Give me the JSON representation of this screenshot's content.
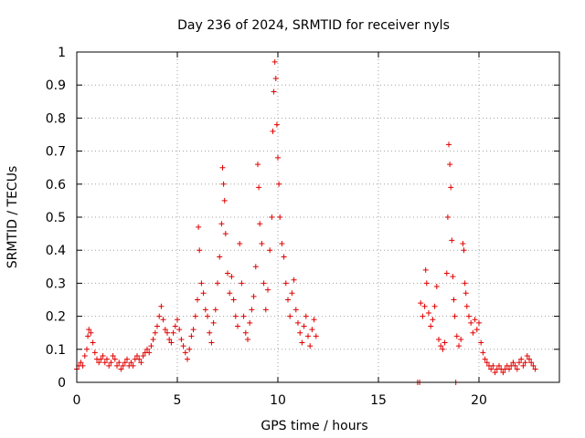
{
  "chart_data": {
    "type": "scatter",
    "title": "Day 236 of 2024, SRMTID for receiver nyls",
    "xlabel": "GPS time / hours",
    "ylabel": "SRMTID / TECUs",
    "xlim": [
      0,
      24
    ],
    "ylim": [
      0,
      1
    ],
    "grid": true,
    "marker": "+",
    "marker_color": "#e00000",
    "xticks": [
      0,
      5,
      10,
      15,
      20
    ],
    "xtick_labels": [
      "0",
      "5",
      "10",
      "15",
      "20"
    ],
    "yticks": [
      0,
      0.1,
      0.2,
      0.3,
      0.4,
      0.5,
      0.6,
      0.7,
      0.8,
      0.9,
      1
    ],
    "ytick_labels": [
      "0",
      "0.1",
      "0.2",
      "0.3",
      "0.4",
      "0.5",
      "0.6",
      "0.7",
      "0.8",
      "0.9",
      "1"
    ],
    "series": [
      {
        "name": "SRMTID",
        "points": [
          [
            0.0,
            0.04
          ],
          [
            0.1,
            0.05
          ],
          [
            0.2,
            0.06
          ],
          [
            0.3,
            0.05
          ],
          [
            0.4,
            0.08
          ],
          [
            0.5,
            0.1
          ],
          [
            0.55,
            0.14
          ],
          [
            0.6,
            0.16
          ],
          [
            0.7,
            0.15
          ],
          [
            0.8,
            0.12
          ],
          [
            0.9,
            0.09
          ],
          [
            1.0,
            0.07
          ],
          [
            1.1,
            0.06
          ],
          [
            1.2,
            0.07
          ],
          [
            1.3,
            0.08
          ],
          [
            1.4,
            0.06
          ],
          [
            1.5,
            0.07
          ],
          [
            1.6,
            0.05
          ],
          [
            1.7,
            0.06
          ],
          [
            1.8,
            0.08
          ],
          [
            1.9,
            0.07
          ],
          [
            2.0,
            0.05
          ],
          [
            2.1,
            0.06
          ],
          [
            2.2,
            0.04
          ],
          [
            2.3,
            0.05
          ],
          [
            2.4,
            0.06
          ],
          [
            2.5,
            0.07
          ],
          [
            2.6,
            0.05
          ],
          [
            2.7,
            0.06
          ],
          [
            2.8,
            0.05
          ],
          [
            2.9,
            0.07
          ],
          [
            3.0,
            0.08
          ],
          [
            3.1,
            0.07
          ],
          [
            3.2,
            0.06
          ],
          [
            3.3,
            0.08
          ],
          [
            3.4,
            0.09
          ],
          [
            3.5,
            0.1
          ],
          [
            3.6,
            0.09
          ],
          [
            3.7,
            0.11
          ],
          [
            3.8,
            0.13
          ],
          [
            3.9,
            0.15
          ],
          [
            4.0,
            0.17
          ],
          [
            4.1,
            0.2
          ],
          [
            4.2,
            0.23
          ],
          [
            4.3,
            0.19
          ],
          [
            4.4,
            0.16
          ],
          [
            4.5,
            0.15
          ],
          [
            4.6,
            0.13
          ],
          [
            4.7,
            0.12
          ],
          [
            4.8,
            0.15
          ],
          [
            4.9,
            0.17
          ],
          [
            5.0,
            0.19
          ],
          [
            5.1,
            0.16
          ],
          [
            5.2,
            0.13
          ],
          [
            5.3,
            0.11
          ],
          [
            5.4,
            0.09
          ],
          [
            5.5,
            0.07
          ],
          [
            5.6,
            0.1
          ],
          [
            5.7,
            0.14
          ],
          [
            5.8,
            0.16
          ],
          [
            5.9,
            0.2
          ],
          [
            6.0,
            0.25
          ],
          [
            6.05,
            0.47
          ],
          [
            6.1,
            0.4
          ],
          [
            6.2,
            0.3
          ],
          [
            6.3,
            0.27
          ],
          [
            6.4,
            0.22
          ],
          [
            6.5,
            0.2
          ],
          [
            6.6,
            0.15
          ],
          [
            6.7,
            0.12
          ],
          [
            6.8,
            0.18
          ],
          [
            6.9,
            0.22
          ],
          [
            7.0,
            0.3
          ],
          [
            7.1,
            0.38
          ],
          [
            7.2,
            0.48
          ],
          [
            7.25,
            0.65
          ],
          [
            7.3,
            0.6
          ],
          [
            7.35,
            0.55
          ],
          [
            7.4,
            0.45
          ],
          [
            7.5,
            0.33
          ],
          [
            7.6,
            0.27
          ],
          [
            7.7,
            0.32
          ],
          [
            7.8,
            0.25
          ],
          [
            7.9,
            0.2
          ],
          [
            8.0,
            0.17
          ],
          [
            8.1,
            0.42
          ],
          [
            8.2,
            0.3
          ],
          [
            8.3,
            0.2
          ],
          [
            8.4,
            0.15
          ],
          [
            8.5,
            0.13
          ],
          [
            8.6,
            0.18
          ],
          [
            8.7,
            0.22
          ],
          [
            8.8,
            0.26
          ],
          [
            8.9,
            0.35
          ],
          [
            9.0,
            0.66
          ],
          [
            9.05,
            0.59
          ],
          [
            9.1,
            0.48
          ],
          [
            9.2,
            0.42
          ],
          [
            9.3,
            0.3
          ],
          [
            9.4,
            0.22
          ],
          [
            9.5,
            0.28
          ],
          [
            9.6,
            0.4
          ],
          [
            9.7,
            0.5
          ],
          [
            9.75,
            0.76
          ],
          [
            9.8,
            0.88
          ],
          [
            9.85,
            0.97
          ],
          [
            9.9,
            0.92
          ],
          [
            9.95,
            0.78
          ],
          [
            10.0,
            0.68
          ],
          [
            10.05,
            0.6
          ],
          [
            10.1,
            0.5
          ],
          [
            10.2,
            0.42
          ],
          [
            10.3,
            0.38
          ],
          [
            10.4,
            0.3
          ],
          [
            10.5,
            0.25
          ],
          [
            10.6,
            0.2
          ],
          [
            10.7,
            0.27
          ],
          [
            10.8,
            0.31
          ],
          [
            10.9,
            0.22
          ],
          [
            11.0,
            0.18
          ],
          [
            11.1,
            0.15
          ],
          [
            11.2,
            0.12
          ],
          [
            11.3,
            0.17
          ],
          [
            11.4,
            0.2
          ],
          [
            11.5,
            0.14
          ],
          [
            11.6,
            0.11
          ],
          [
            11.7,
            0.16
          ],
          [
            11.8,
            0.19
          ],
          [
            11.9,
            0.14
          ],
          [
            16.95,
            0.0
          ],
          [
            17.05,
            0.0
          ],
          [
            17.1,
            0.24
          ],
          [
            17.2,
            0.2
          ],
          [
            17.3,
            0.23
          ],
          [
            17.35,
            0.34
          ],
          [
            17.4,
            0.3
          ],
          [
            17.5,
            0.21
          ],
          [
            17.6,
            0.17
          ],
          [
            17.7,
            0.19
          ],
          [
            17.8,
            0.23
          ],
          [
            17.9,
            0.29
          ],
          [
            18.0,
            0.13
          ],
          [
            18.1,
            0.11
          ],
          [
            18.2,
            0.1
          ],
          [
            18.3,
            0.12
          ],
          [
            18.4,
            0.33
          ],
          [
            18.45,
            0.5
          ],
          [
            18.5,
            0.72
          ],
          [
            18.55,
            0.66
          ],
          [
            18.6,
            0.59
          ],
          [
            18.65,
            0.43
          ],
          [
            18.7,
            0.32
          ],
          [
            18.75,
            0.25
          ],
          [
            18.8,
            0.2
          ],
          [
            18.85,
            0.0
          ],
          [
            18.9,
            0.14
          ],
          [
            19.0,
            0.11
          ],
          [
            19.1,
            0.13
          ],
          [
            19.2,
            0.42
          ],
          [
            19.25,
            0.4
          ],
          [
            19.3,
            0.3
          ],
          [
            19.35,
            0.27
          ],
          [
            19.4,
            0.23
          ],
          [
            19.5,
            0.2
          ],
          [
            19.6,
            0.18
          ],
          [
            19.7,
            0.15
          ],
          [
            19.8,
            0.19
          ],
          [
            19.9,
            0.16
          ],
          [
            20.0,
            0.18
          ],
          [
            20.1,
            0.12
          ],
          [
            20.2,
            0.09
          ],
          [
            20.3,
            0.07
          ],
          [
            20.4,
            0.06
          ],
          [
            20.5,
            0.05
          ],
          [
            20.6,
            0.04
          ],
          [
            20.7,
            0.05
          ],
          [
            20.8,
            0.03
          ],
          [
            20.9,
            0.04
          ],
          [
            21.0,
            0.05
          ],
          [
            21.1,
            0.04
          ],
          [
            21.2,
            0.03
          ],
          [
            21.3,
            0.04
          ],
          [
            21.4,
            0.05
          ],
          [
            21.5,
            0.04
          ],
          [
            21.6,
            0.05
          ],
          [
            21.7,
            0.06
          ],
          [
            21.8,
            0.05
          ],
          [
            21.9,
            0.04
          ],
          [
            22.0,
            0.06
          ],
          [
            22.1,
            0.07
          ],
          [
            22.2,
            0.05
          ],
          [
            22.3,
            0.06
          ],
          [
            22.4,
            0.08
          ],
          [
            22.5,
            0.07
          ],
          [
            22.6,
            0.06
          ],
          [
            22.7,
            0.05
          ],
          [
            22.8,
            0.04
          ]
        ]
      }
    ]
  }
}
